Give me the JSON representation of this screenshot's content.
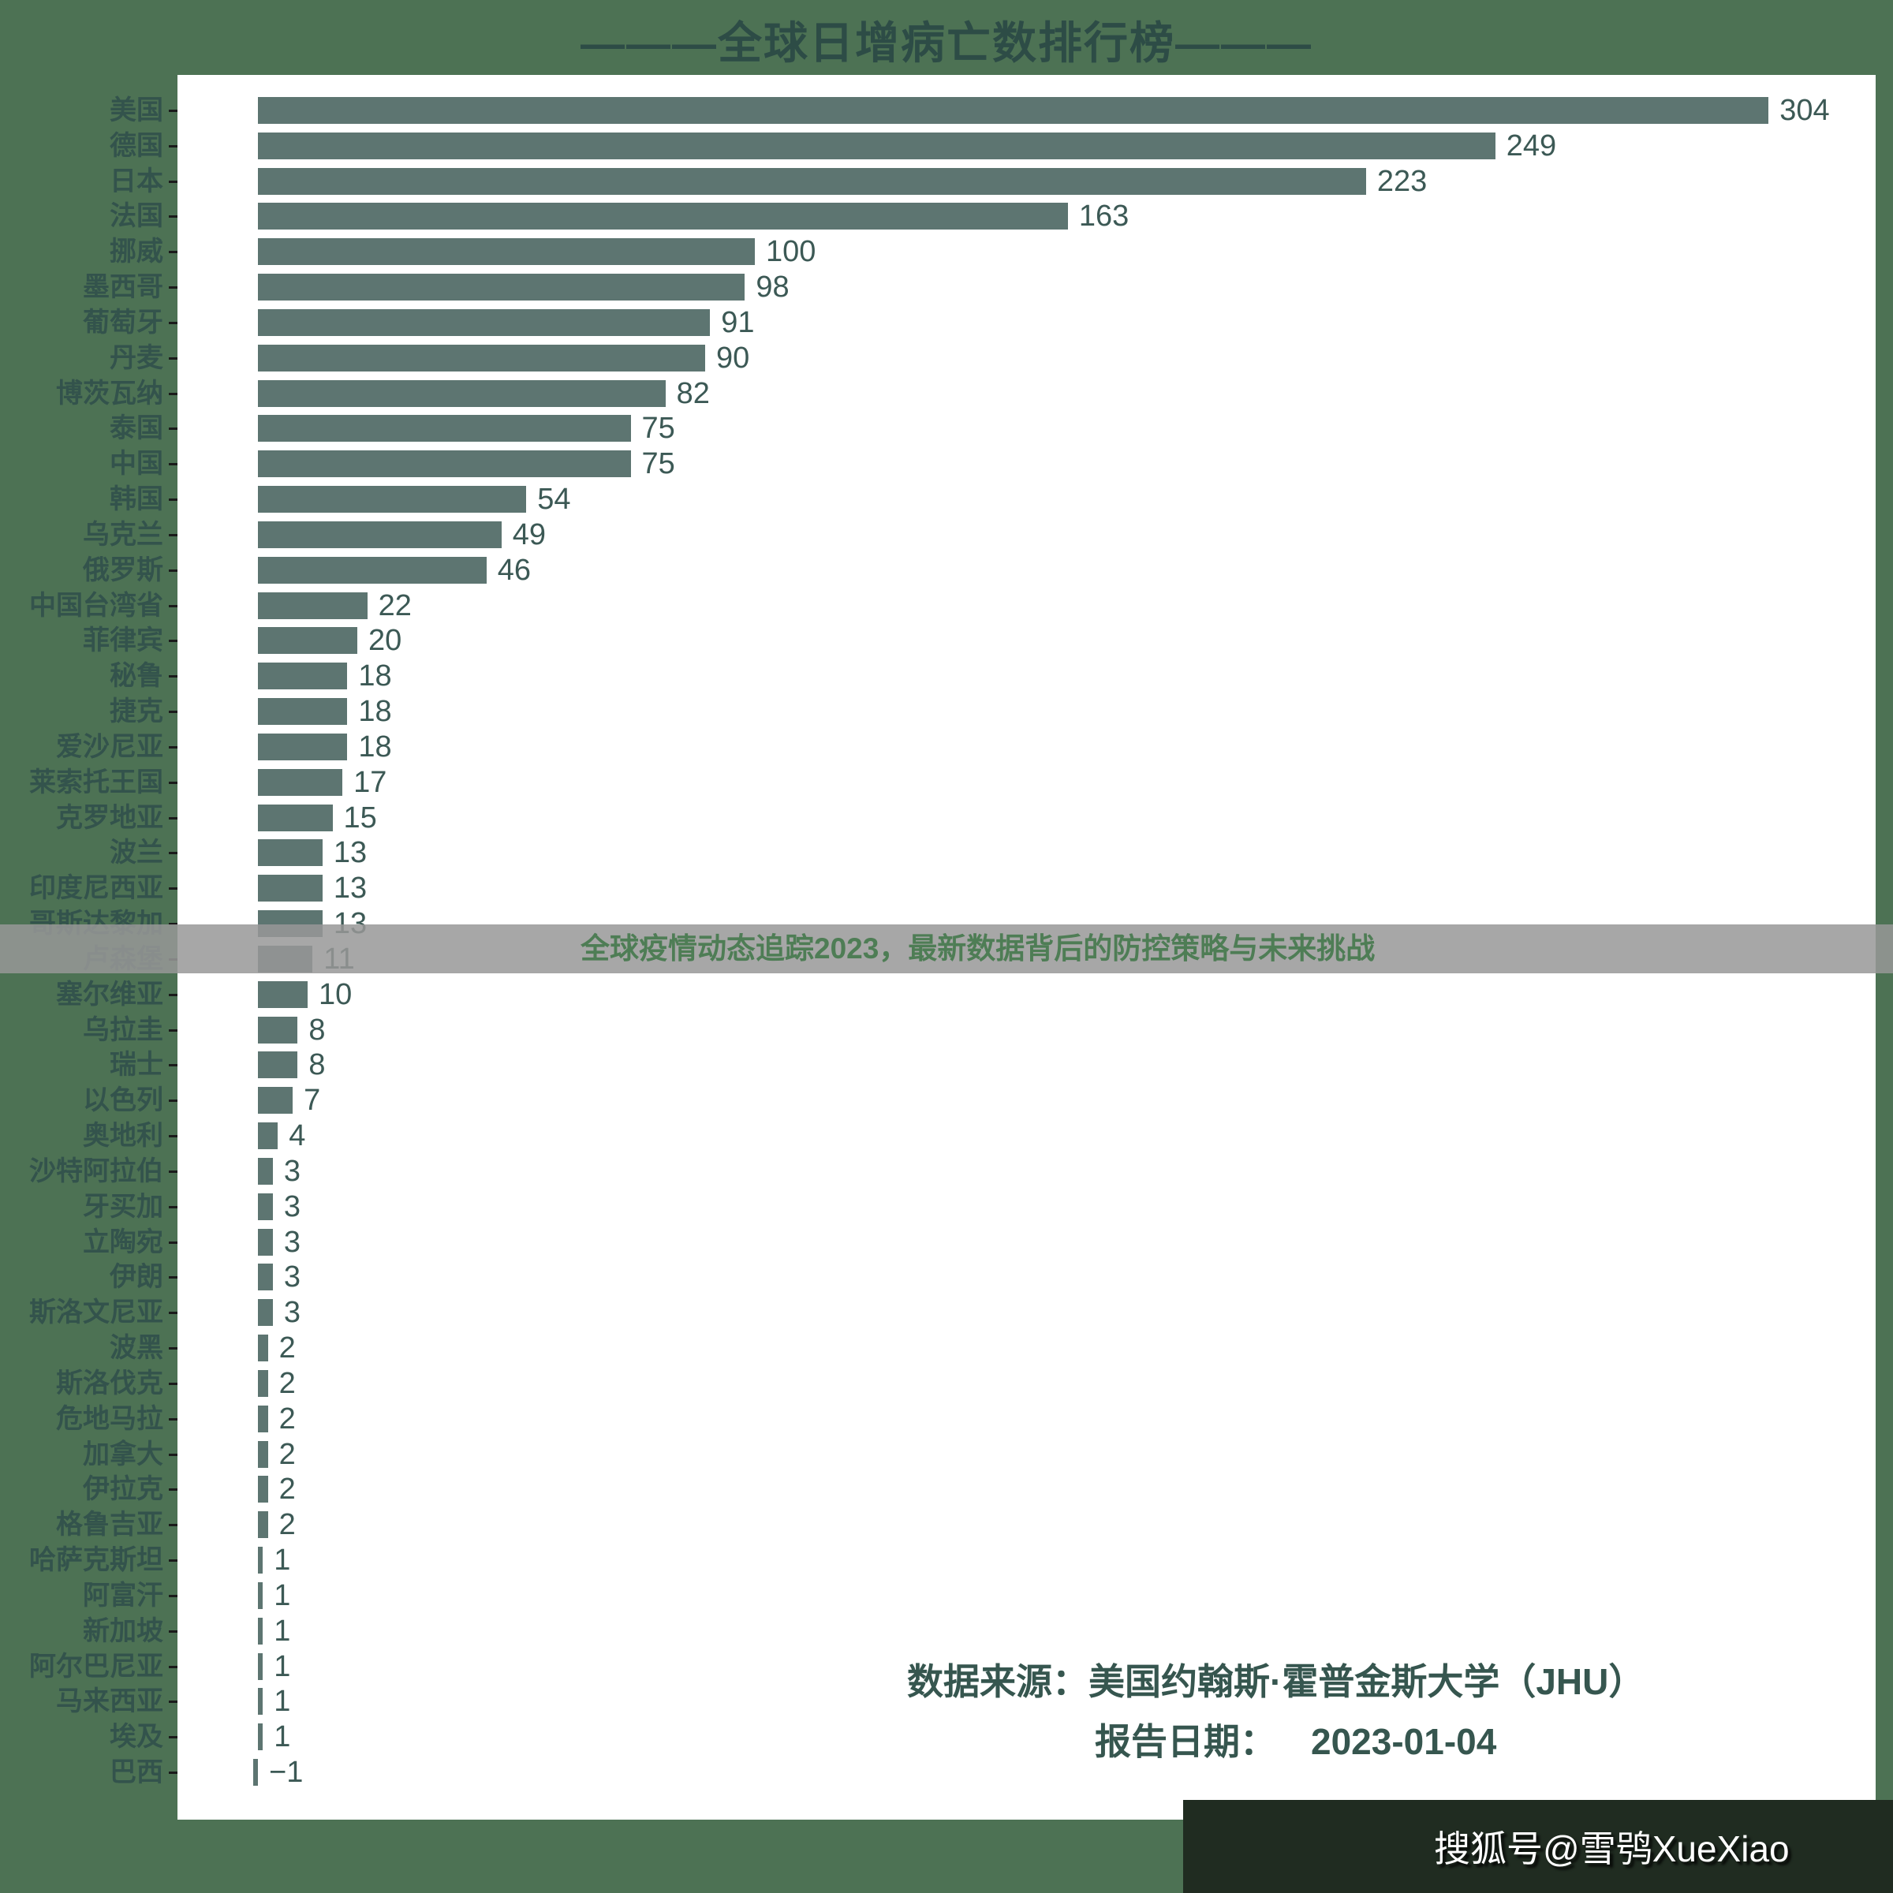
{
  "page": {
    "title": "———全球日增病亡数排行榜———",
    "watermark_text": "全球疫情动态追踪2023，最新数据背后的防控策略与未来挑战",
    "source_label": "数据来源：美国约翰斯·霍普金斯大学（JHU）",
    "report_date_label": "报告日期：",
    "report_date_value": "2023-01-04",
    "footer_badge": "搜狐号@雪鸮XueXiao"
  },
  "colors": {
    "page_background": "#4d7254",
    "chart_background": "#ffffff",
    "bar": "#5d7571",
    "category_text": "#33534c",
    "value_text": "#3c5955",
    "title_text": "#2d4c46",
    "watermark_band": "rgba(152,152,152,0.85)",
    "watermark_text": "#4e7d55",
    "footer_background": "#202c21",
    "footer_text": "#ffffff"
  },
  "chart_data": {
    "type": "bar",
    "orientation": "horizontal",
    "title": "———全球日增病亡数排行榜———",
    "xlabel": "",
    "ylabel": "",
    "xlim": [
      -6,
      330
    ],
    "grid": false,
    "legend": false,
    "value_labels": true,
    "bar_color": "#5d7571",
    "categories": [
      "美国",
      "德国",
      "日本",
      "法国",
      "挪威",
      "墨西哥",
      "葡萄牙",
      "丹麦",
      "博茨瓦纳",
      "泰国",
      "中国",
      "韩国",
      "乌克兰",
      "俄罗斯",
      "中国台湾省",
      "菲律宾",
      "秘鲁",
      "捷克",
      "爱沙尼亚",
      "莱索托王国",
      "克罗地亚",
      "波兰",
      "印度尼西亚",
      "哥斯达黎加",
      "卢森堡",
      "塞尔维亚",
      "乌拉圭",
      "瑞士",
      "以色列",
      "奥地利",
      "沙特阿拉伯",
      "牙买加",
      "立陶宛",
      "伊朗",
      "斯洛文尼亚",
      "波黑",
      "斯洛伐克",
      "危地马拉",
      "加拿大",
      "伊拉克",
      "格鲁吉亚",
      "哈萨克斯坦",
      "阿富汗",
      "新加坡",
      "阿尔巴尼亚",
      "马来西亚",
      "埃及",
      "巴西"
    ],
    "values": [
      304,
      249,
      223,
      163,
      100,
      98,
      91,
      90,
      82,
      75,
      75,
      54,
      49,
      46,
      22,
      20,
      18,
      18,
      18,
      17,
      15,
      13,
      13,
      13,
      11,
      10,
      8,
      8,
      7,
      4,
      3,
      3,
      3,
      3,
      3,
      2,
      2,
      2,
      2,
      2,
      2,
      1,
      1,
      1,
      1,
      1,
      1,
      -1
    ],
    "source": "数据来源：美国约翰斯·霍普金斯大学（JHU）",
    "report_date": "2023-01-04"
  }
}
